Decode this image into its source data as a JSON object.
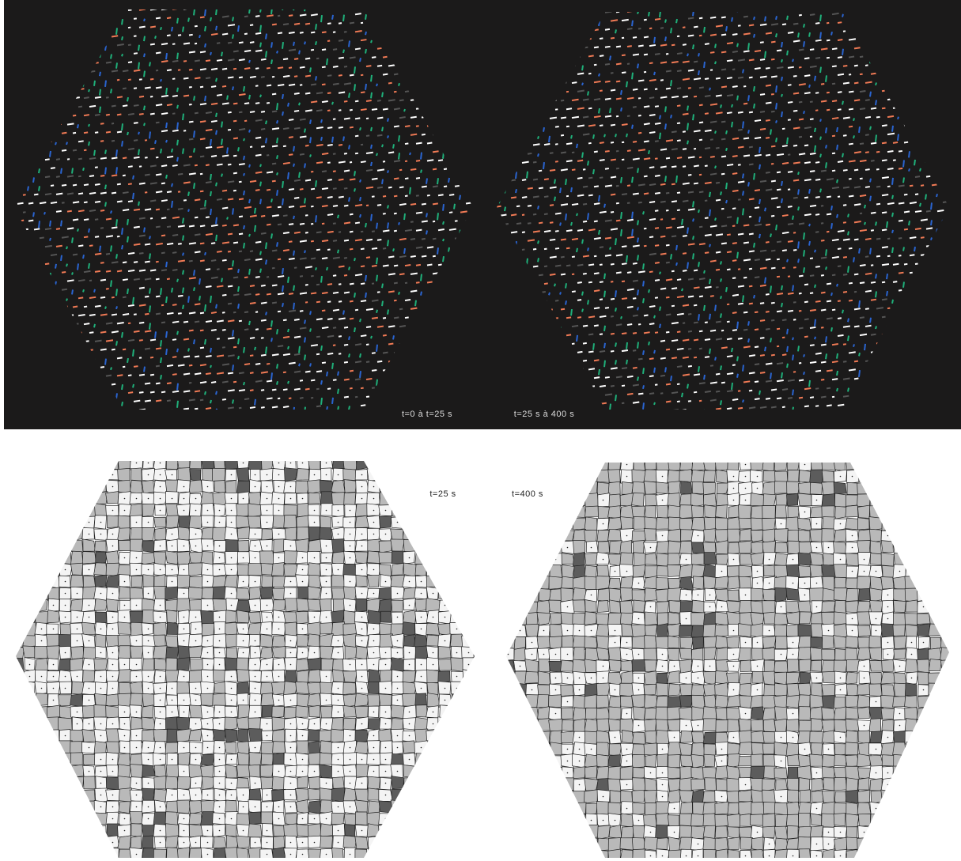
{
  "panels": {
    "top_left_caption": "t=0 à t=25 s",
    "top_right_caption": "t=25 s à 400 s",
    "bottom_left_caption": "t=25 s",
    "bottom_right_caption": "t=400 s"
  }
}
